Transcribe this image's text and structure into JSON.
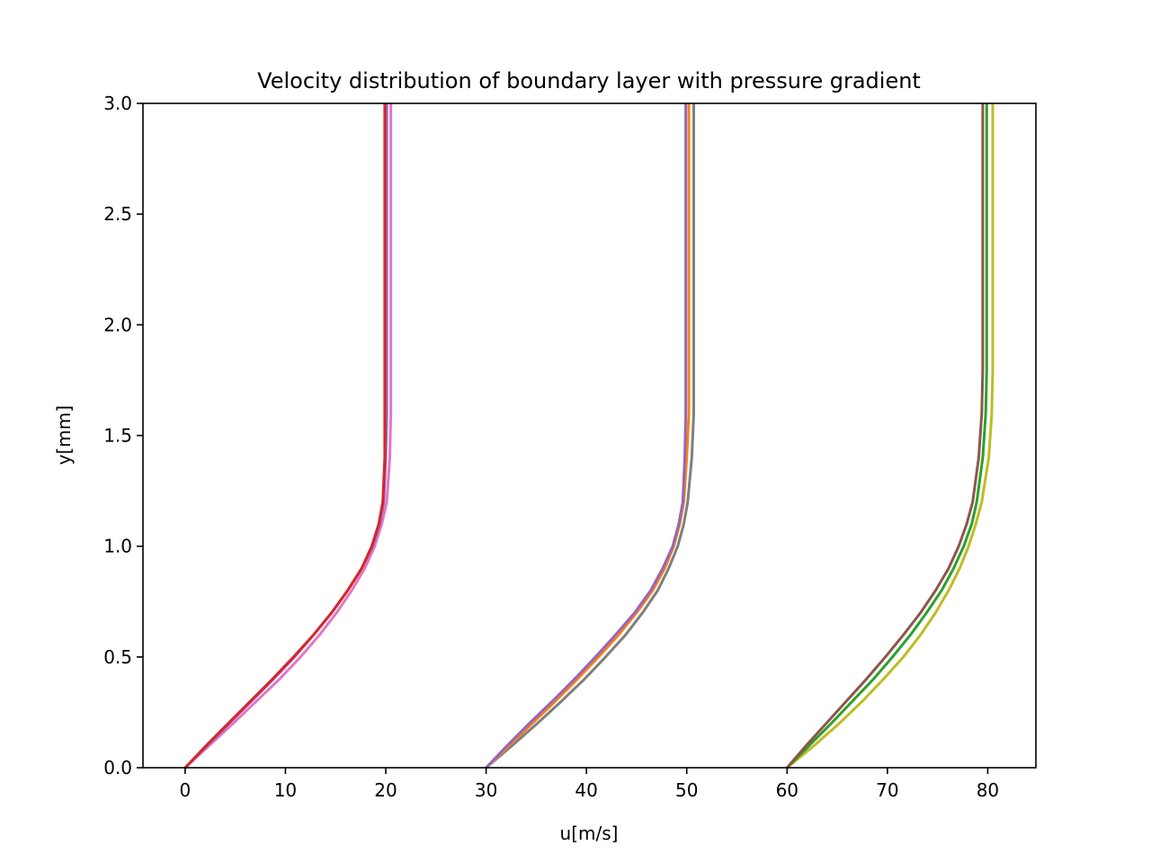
{
  "chart_data": {
    "type": "line",
    "title": "Velocity distribution of boundary layer with pressure gradient",
    "xlabel": "u[m/s]",
    "ylabel": "y[mm]",
    "xlim": [
      -4.2,
      84.8
    ],
    "ylim": [
      0,
      3.0
    ],
    "xticks": [
      "0",
      "10",
      "20",
      "30",
      "40",
      "50",
      "60",
      "70",
      "80"
    ],
    "yticks": [
      "0.0",
      "0.5",
      "1.0",
      "1.5",
      "2.0",
      "2.5",
      "3.0"
    ],
    "grid": false,
    "legend": "none",
    "y": [
      0,
      0.1,
      0.2,
      0.3,
      0.4,
      0.5,
      0.6,
      0.7,
      0.8,
      0.9,
      1.0,
      1.1,
      1.2,
      1.4,
      1.6,
      1.8,
      2.0,
      2.5,
      3.0
    ],
    "series": [
      {
        "color": "#e377c2",
        "x": [
          0,
          2.4,
          4.8,
          7.1,
          9.4,
          11.5,
          13.4,
          15.1,
          16.6,
          17.9,
          18.9,
          19.6,
          20.1,
          20.4,
          20.5,
          20.5,
          20.5,
          20.5,
          20.5
        ]
      },
      {
        "color": "#9467bd",
        "x": [
          0,
          2.2,
          4.4,
          6.6,
          8.8,
          10.9,
          12.8,
          14.6,
          16.2,
          17.6,
          18.7,
          19.4,
          19.8,
          20.0,
          20.1,
          20.1,
          20.1,
          20.1,
          20.1
        ]
      },
      {
        "color": "#d62728",
        "x": [
          0,
          2.1,
          4.3,
          6.5,
          8.7,
          10.8,
          12.8,
          14.6,
          16.2,
          17.6,
          18.6,
          19.3,
          19.7,
          19.9,
          19.9,
          19.9,
          19.9,
          19.9,
          19.9
        ]
      },
      {
        "color": "#7f7f7f",
        "x": [
          30,
          32.6,
          35.1,
          37.5,
          39.8,
          41.9,
          43.9,
          45.6,
          47.1,
          48.2,
          49.1,
          49.7,
          50.1,
          50.5,
          50.7,
          50.7,
          50.7,
          50.7,
          50.7
        ]
      },
      {
        "color": "#ff7f0e",
        "x": [
          30,
          32.3,
          34.6,
          36.9,
          39.1,
          41.2,
          43.2,
          45.0,
          46.6,
          47.8,
          48.7,
          49.3,
          49.7,
          50.0,
          50.2,
          50.2,
          50.2,
          50.2,
          50.2
        ]
      },
      {
        "color": "#9467bd",
        "x": [
          30,
          32.1,
          34.3,
          36.6,
          38.8,
          40.9,
          42.9,
          44.8,
          46.4,
          47.6,
          48.6,
          49.2,
          49.6,
          49.8,
          49.9,
          49.9,
          49.9,
          49.9,
          49.9
        ]
      },
      {
        "color": "#bcbd22",
        "x": [
          60,
          62.7,
          65.2,
          67.5,
          69.6,
          71.6,
          73.3,
          74.8,
          76.1,
          77.2,
          78.1,
          78.8,
          79.4,
          80.1,
          80.4,
          80.5,
          80.5,
          80.5,
          80.5
        ]
      },
      {
        "color": "#2ca02c",
        "x": [
          60,
          62.2,
          64.4,
          66.5,
          68.6,
          70.5,
          72.3,
          73.9,
          75.4,
          76.6,
          77.6,
          78.4,
          78.9,
          79.5,
          79.8,
          79.9,
          79.9,
          79.9,
          79.9
        ]
      },
      {
        "color": "#8c564b",
        "x": [
          60,
          61.9,
          63.9,
          65.9,
          67.9,
          69.8,
          71.6,
          73.3,
          74.8,
          76.1,
          77.1,
          77.9,
          78.5,
          79.1,
          79.4,
          79.5,
          79.5,
          79.5,
          79.5
        ]
      }
    ]
  }
}
